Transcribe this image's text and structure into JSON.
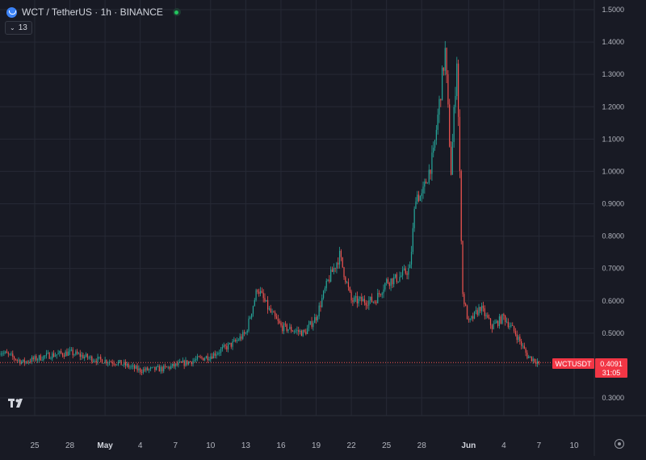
{
  "header": {
    "symbol": "WCT",
    "title": "WCT / TetherUS · 1h · BINANCE"
  },
  "indicators": {
    "count": "13"
  },
  "last_price": {
    "ticker": "WCTUSDT",
    "price": "0.4091",
    "countdown": "31:05"
  },
  "colors": {
    "up": "#26a69a",
    "down": "#ef5350",
    "background": "#181a24",
    "grid": "#262935",
    "label_bg": "#f23645"
  },
  "chart_data": {
    "type": "candlestick",
    "title": "",
    "series": [
      {
        "name": "",
        "x_start": "2025-04-22",
        "x_end": "2025-06-07",
        "anchors": [
          [
            "2025-04-22",
            0.445
          ],
          [
            "2025-04-24",
            0.41
          ],
          [
            "2025-04-26",
            0.43
          ],
          [
            "2025-04-28",
            0.44
          ],
          [
            "2025-04-30",
            0.42
          ],
          [
            "2025-05-02",
            0.41
          ],
          [
            "2025-05-04",
            0.385
          ],
          [
            "2025-05-06",
            0.39
          ],
          [
            "2025-05-08",
            0.41
          ],
          [
            "2025-05-10",
            0.43
          ],
          [
            "2025-05-12",
            0.47
          ],
          [
            "2025-05-13",
            0.5
          ],
          [
            "2025-05-14",
            0.64
          ],
          [
            "2025-05-15",
            0.57
          ],
          [
            "2025-05-16",
            0.52
          ],
          [
            "2025-05-18",
            0.5
          ],
          [
            "2025-05-19",
            0.55
          ],
          [
            "2025-05-20",
            0.66
          ],
          [
            "2025-05-21",
            0.74
          ],
          [
            "2025-05-22",
            0.6
          ],
          [
            "2025-05-24",
            0.6
          ],
          [
            "2025-05-25",
            0.66
          ],
          [
            "2025-05-26",
            0.67
          ],
          [
            "2025-05-27",
            0.7
          ],
          [
            "2025-05-27T12:00",
            0.93
          ],
          [
            "2025-05-28",
            0.92
          ],
          [
            "2025-05-29",
            1.05
          ],
          [
            "2025-05-30",
            1.37
          ],
          [
            "2025-05-30T12:00",
            1.0
          ],
          [
            "2025-05-31",
            1.35
          ],
          [
            "2025-05-31T12:00",
            0.62
          ],
          [
            "2025-06-01",
            0.53
          ],
          [
            "2025-06-02",
            0.58
          ],
          [
            "2025-06-03",
            0.52
          ],
          [
            "2025-06-04",
            0.55
          ],
          [
            "2025-06-05",
            0.5
          ],
          [
            "2025-06-06",
            0.43
          ],
          [
            "2025-06-07",
            0.4091
          ]
        ]
      }
    ],
    "y_axis": {
      "ticks": [
        "1.5000",
        "1.4000",
        "1.3000",
        "1.2000",
        "1.1000",
        "1.0000",
        "0.9000",
        "0.8000",
        "0.7000",
        "0.6000",
        "0.5000",
        "0.4000",
        "0.3000"
      ],
      "range": [
        0.25,
        1.52
      ]
    },
    "x_axis": {
      "ticks": [
        {
          "label": "25",
          "date": "2025-04-25"
        },
        {
          "label": "28",
          "date": "2025-04-28"
        },
        {
          "label": "May",
          "date": "2025-05-01",
          "bold": true
        },
        {
          "label": "4",
          "date": "2025-05-04"
        },
        {
          "label": "7",
          "date": "2025-05-07"
        },
        {
          "label": "10",
          "date": "2025-05-10"
        },
        {
          "label": "13",
          "date": "2025-05-13"
        },
        {
          "label": "16",
          "date": "2025-05-16"
        },
        {
          "label": "19",
          "date": "2025-05-19"
        },
        {
          "label": "22",
          "date": "2025-05-22"
        },
        {
          "label": "25",
          "date": "2025-05-25"
        },
        {
          "label": "28",
          "date": "2025-05-28"
        },
        {
          "label": "Jun",
          "date": "2025-06-01",
          "bold": true
        },
        {
          "label": "4",
          "date": "2025-06-04"
        },
        {
          "label": "7",
          "date": "2025-06-07"
        },
        {
          "label": "10",
          "date": "2025-06-10"
        }
      ]
    },
    "grid": true
  }
}
